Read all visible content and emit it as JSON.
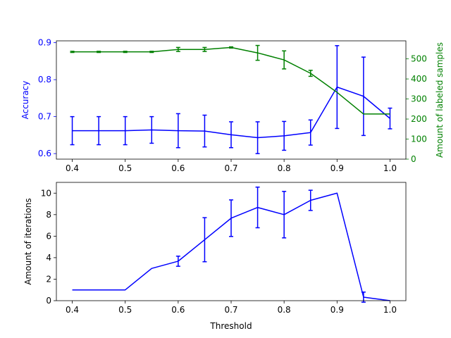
{
  "chart_data": [
    {
      "type": "line",
      "x": [
        0.4,
        0.45,
        0.5,
        0.55,
        0.6,
        0.65,
        0.7,
        0.75,
        0.8,
        0.85,
        0.9,
        0.95,
        1.0
      ],
      "xticks": [
        "0.4",
        "0.5",
        "0.6",
        "0.7",
        "0.8",
        "0.9",
        "1.0"
      ],
      "xlim": [
        0.37,
        1.03
      ],
      "ylabel": "Accuracy",
      "ylim": [
        0.585,
        0.905
      ],
      "yticks": [
        "0.6",
        "0.7",
        "0.8",
        "0.9"
      ],
      "y2label": "Amount of labeled samples",
      "y2lim": [
        0,
        590
      ],
      "y2ticks": [
        "0",
        "100",
        "200",
        "300",
        "400",
        "500"
      ],
      "series": [
        {
          "axis": "left",
          "color": "#0000ff",
          "values": [
            0.662,
            0.662,
            0.662,
            0.664,
            0.662,
            0.661,
            0.651,
            0.643,
            0.648,
            0.657,
            0.78,
            0.755,
            0.695
          ],
          "errors": [
            0.038,
            0.038,
            0.038,
            0.036,
            0.046,
            0.043,
            0.035,
            0.043,
            0.039,
            0.034,
            0.112,
            0.106,
            0.028
          ]
        },
        {
          "axis": "right",
          "color": "#008000",
          "values": [
            535,
            535,
            535,
            535,
            547,
            547,
            557,
            530,
            495,
            428,
            333,
            225,
            225
          ],
          "errors": [
            3,
            3,
            3,
            3,
            10,
            10,
            3,
            37,
            45,
            15,
            0,
            0,
            0
          ]
        }
      ]
    },
    {
      "type": "line",
      "x": [
        0.4,
        0.45,
        0.5,
        0.55,
        0.6,
        0.65,
        0.7,
        0.75,
        0.8,
        0.85,
        0.9,
        0.95,
        1.0
      ],
      "xticks": [
        "0.4",
        "0.5",
        "0.6",
        "0.7",
        "0.8",
        "0.9",
        "1.0"
      ],
      "xlim": [
        0.37,
        1.03
      ],
      "xlabel": "Threshold",
      "ylabel": "Amount of iterations",
      "ylim": [
        0,
        11
      ],
      "yticks": [
        "0",
        "2",
        "4",
        "6",
        "8",
        "10"
      ],
      "series": [
        {
          "color": "#0000ff",
          "values": [
            1.0,
            1.0,
            1.0,
            3.0,
            3.67,
            5.67,
            7.67,
            8.67,
            8.0,
            9.33,
            10.0,
            0.33,
            0.0
          ],
          "errors": [
            0,
            0,
            0,
            0,
            0.47,
            2.05,
            1.7,
            1.89,
            2.16,
            0.94,
            0,
            0.47,
            0
          ]
        }
      ]
    }
  ]
}
